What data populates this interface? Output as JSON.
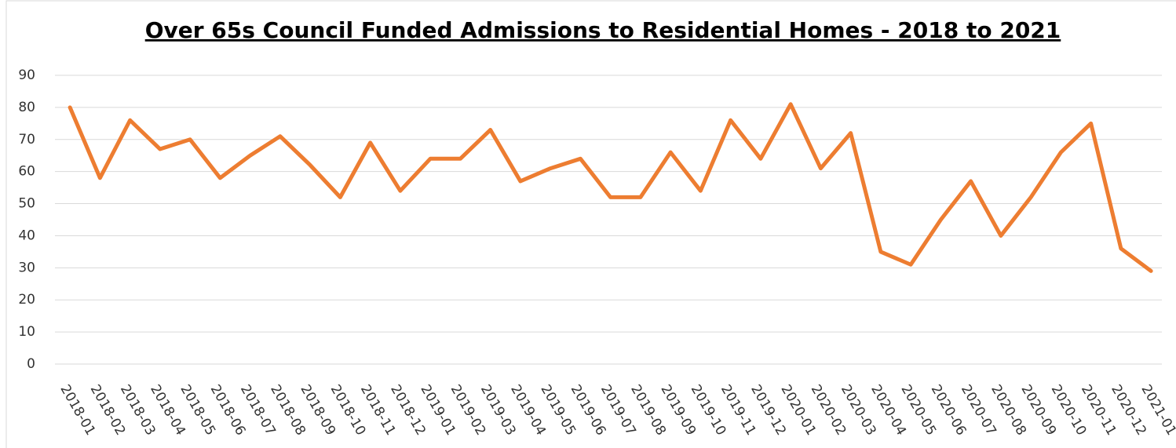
{
  "chart_data": {
    "type": "line",
    "title": "Over 65s Council Funded Admissions to Residential Homes - 2018 to 2021",
    "categories": [
      "2018-01",
      "2018-02",
      "2018-03",
      "2018-04",
      "2018-05",
      "2018-06",
      "2018-07",
      "2018-08",
      "2018-09",
      "2018-10",
      "2018-11",
      "2018-12",
      "2019-01",
      "2019-02",
      "2019-03",
      "2019-04",
      "2019-05",
      "2019-06",
      "2019-07",
      "2019-08",
      "2019-09",
      "2019-10",
      "2019-11",
      "2019-12",
      "2020-01",
      "2020-02",
      "2020-03",
      "2020-04",
      "2020-05",
      "2020-06",
      "2020-07",
      "2020-08",
      "2020-09",
      "2020-10",
      "2020-11",
      "2020-12",
      "2021-01"
    ],
    "values": [
      80,
      58,
      76,
      67,
      70,
      58,
      65,
      71,
      62,
      52,
      69,
      54,
      64,
      64,
      73,
      57,
      61,
      64,
      52,
      52,
      66,
      54,
      76,
      64,
      81,
      61,
      72,
      35,
      31,
      45,
      57,
      40,
      52,
      66,
      75,
      36,
      29
    ],
    "color": "#ed7d31",
    "ylim": [
      0,
      90
    ],
    "yticks": [
      0,
      10,
      20,
      30,
      40,
      50,
      60,
      70,
      80,
      90
    ],
    "grid": true
  }
}
